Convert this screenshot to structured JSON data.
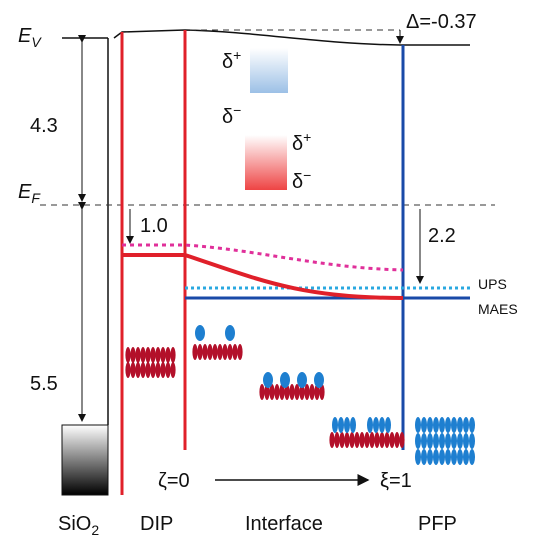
{
  "levels": {
    "vacuum": {
      "symbol": "E",
      "subscript": "V"
    },
    "fermi": {
      "symbol": "E",
      "subscript": "F"
    }
  },
  "offsets": {
    "delta": "Δ=-0.37",
    "vacuum_to_fermi": "4.3",
    "fermi_to_sio2": "5.5",
    "dip_shift": "1.0",
    "pfp_shift": "2.2"
  },
  "series_labels": {
    "ups": "UPS",
    "maes": "MAES"
  },
  "dipoles": {
    "pfp": {
      "top": {
        "symbol": "δ",
        "superscript": "+"
      },
      "bottom": {
        "symbol": "δ",
        "superscript": "−"
      }
    },
    "dip": {
      "top": {
        "symbol": "δ",
        "superscript": "+"
      },
      "bottom": {
        "symbol": "δ",
        "superscript": "−"
      }
    }
  },
  "coordinate": {
    "start": "ζ=0",
    "end": "ξ=1"
  },
  "regions": {
    "sio2": {
      "text": "SiO",
      "subscript": "2"
    },
    "dip": "DIP",
    "interface": "Interface",
    "pfp": "PFP"
  }
}
